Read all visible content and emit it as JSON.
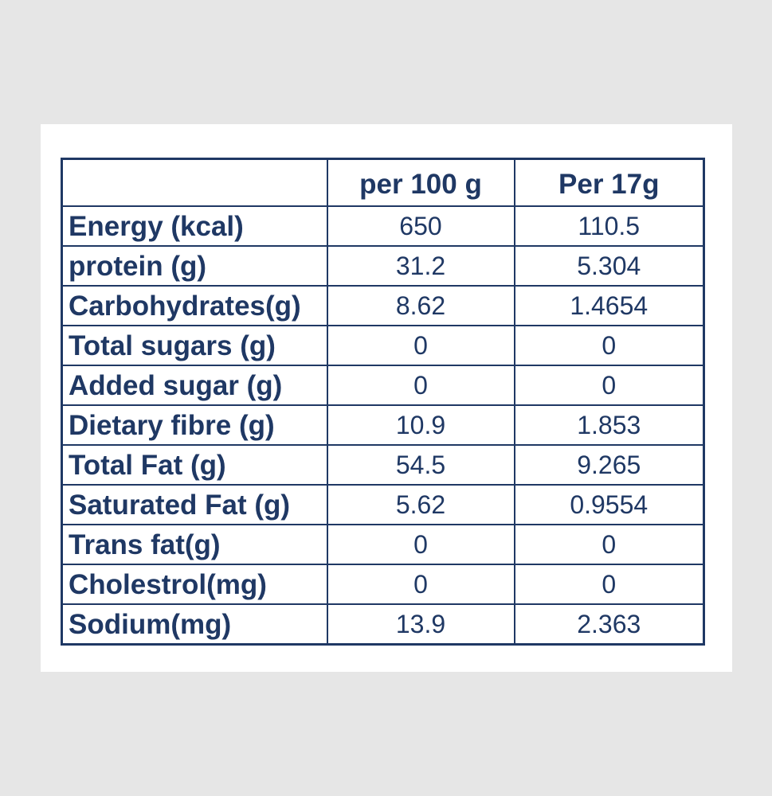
{
  "table": {
    "headers": [
      "",
      "per 100 g",
      "Per 17g"
    ],
    "rows": [
      {
        "nutrient": "Energy (kcal)",
        "per_100g": "650",
        "per_17g": "110.5"
      },
      {
        "nutrient": "protein (g)",
        "per_100g": "31.2",
        "per_17g": "5.304"
      },
      {
        "nutrient": "Carbohydrates(g)",
        "per_100g": "8.62",
        "per_17g": "1.4654"
      },
      {
        "nutrient": "Total sugars (g)",
        "per_100g": "0",
        "per_17g": "0"
      },
      {
        "nutrient": "Added sugar (g)",
        "per_100g": "0",
        "per_17g": "0"
      },
      {
        "nutrient": "Dietary fibre (g)",
        "per_100g": "10.9",
        "per_17g": "1.853"
      },
      {
        "nutrient": "Total Fat (g)",
        "per_100g": "54.5",
        "per_17g": "9.265"
      },
      {
        "nutrient": "Saturated Fat (g)",
        "per_100g": "5.62",
        "per_17g": "0.9554"
      },
      {
        "nutrient": "Trans fat(g)",
        "per_100g": "0",
        "per_17g": "0"
      },
      {
        "nutrient": "Cholestrol(mg)",
        "per_100g": "0",
        "per_17g": "0"
      },
      {
        "nutrient": "Sodium(mg)",
        "per_100g": "13.9",
        "per_17g": "2.363"
      }
    ]
  },
  "colors": {
    "text": "#1f3864",
    "border": "#1f3864",
    "background": "#e6e6e6",
    "card": "#ffffff"
  }
}
